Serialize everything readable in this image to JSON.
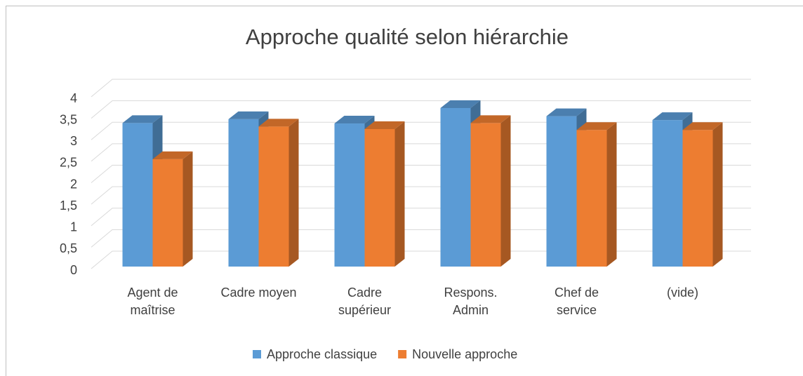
{
  "chart_data": {
    "type": "bar3d",
    "title": "Approche qualité selon hiérarchie",
    "categories": [
      "Agent de\nmaîtrise",
      "Cadre moyen",
      "Cadre\nsupérieur",
      "Respons.\nAdmin",
      "Chef de\nservice",
      "(vide)"
    ],
    "series": [
      {
        "name": "Approche classique",
        "color": "#5b9bd5",
        "values": [
          3.34,
          3.43,
          3.33,
          3.69,
          3.5,
          3.41
        ]
      },
      {
        "name": "Nouvelle approche",
        "color": "#ed7d31",
        "values": [
          2.5,
          3.26,
          3.2,
          3.34,
          3.18,
          3.18
        ]
      }
    ],
    "ylim": [
      0,
      4
    ],
    "yticks": [
      0,
      {
        "value": 0.5,
        "label": "0,5"
      },
      1,
      {
        "value": 1.5,
        "label": "1,5"
      },
      2,
      {
        "value": 2.5,
        "label": "2,5"
      },
      3,
      {
        "value": 3.5,
        "label": "3,5"
      },
      4
    ],
    "grid": true,
    "legend": "bottom"
  }
}
